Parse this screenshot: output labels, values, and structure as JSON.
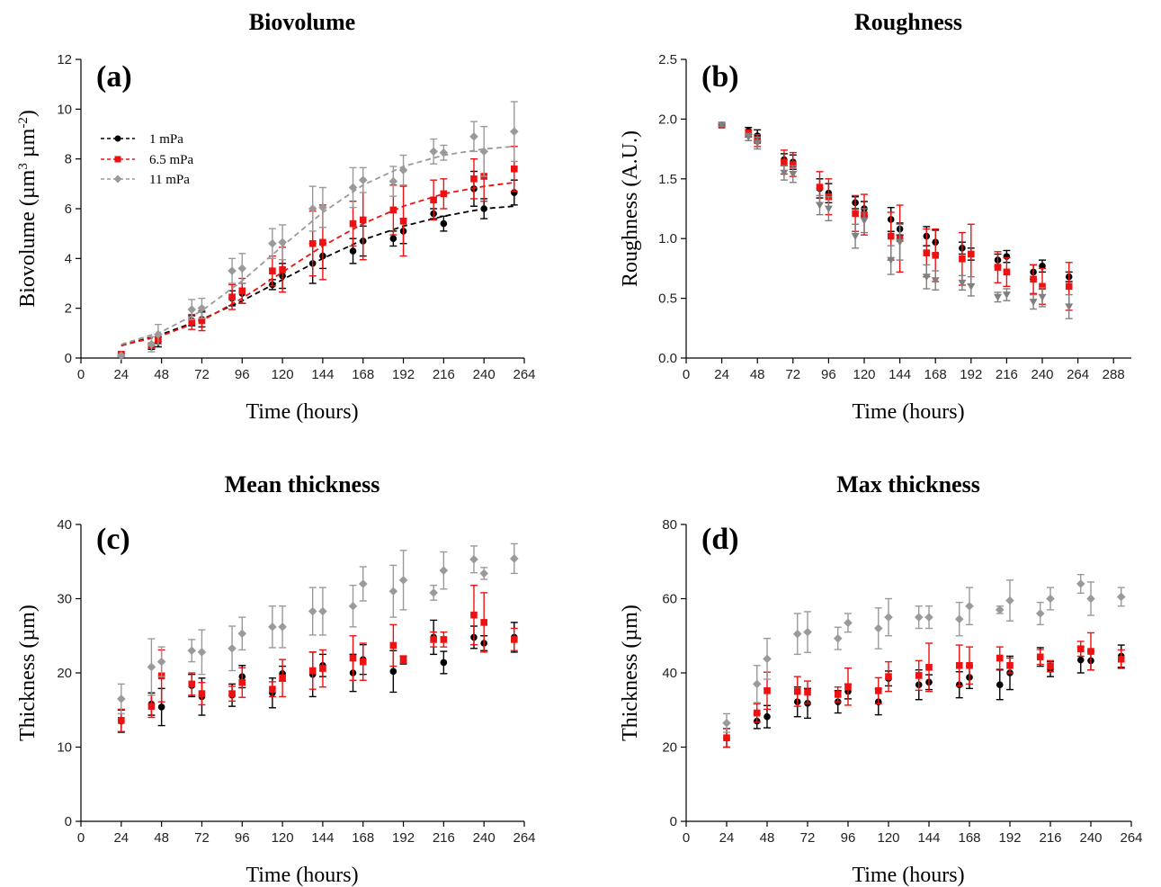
{
  "colors": {
    "s1": "#000000",
    "s2": "#ee1111",
    "s3": "#9a9a9a",
    "s3b": "#808080"
  },
  "chart_data": [
    {
      "id": "a",
      "panel_label": "(a)",
      "type": "scatter",
      "title": "Biovolume",
      "xlabel": "Time (hours)",
      "ylabel": "Biovolume (µm³ µm⁻²)",
      "ylabel_parts": {
        "main": "Biovolume (µm",
        "sup1": "3",
        "mid": " µm",
        "sup2": "-2",
        "end": ")"
      },
      "xlim": [
        0,
        264
      ],
      "ylim": [
        0,
        12
      ],
      "xticks": [
        0,
        24,
        48,
        72,
        96,
        120,
        144,
        168,
        192,
        216,
        240,
        264
      ],
      "yticks": [
        0,
        2,
        4,
        6,
        8,
        10,
        12
      ],
      "ytick_labels": [
        "0",
        "2",
        "4",
        "6",
        "8",
        "10",
        "12"
      ],
      "legend": {
        "position": "upper-left",
        "entries": [
          "1 mPa",
          "6.5 mPa",
          "11 mPa"
        ]
      },
      "series": [
        {
          "name": "1 mPa",
          "color": "#000000",
          "marker": "circle",
          "x": [
            24,
            42,
            46,
            66,
            72,
            90,
            96,
            114,
            120,
            138,
            144,
            162,
            168,
            186,
            192,
            210,
            216,
            234,
            240,
            258
          ],
          "y": [
            0.1,
            0.45,
            0.65,
            1.5,
            1.55,
            2.4,
            2.6,
            2.95,
            3.3,
            3.8,
            4.1,
            4.3,
            4.7,
            4.8,
            5.1,
            5.8,
            5.4,
            6.8,
            6.0,
            6.65
          ],
          "err": [
            0.05,
            0.1,
            0.2,
            0.2,
            0.3,
            0.3,
            0.4,
            0.2,
            0.5,
            0.8,
            0.5,
            0.5,
            0.6,
            0.3,
            0.5,
            0.2,
            0.3,
            0.7,
            0.4,
            0.5
          ],
          "fit": {
            "x": [
              24,
              48,
              72,
              96,
              120,
              144,
              168,
              192,
              216,
              240,
              258
            ],
            "y": [
              0.5,
              0.95,
              1.55,
              2.3,
              3.15,
              4.0,
              4.75,
              5.3,
              5.7,
              6.0,
              6.1
            ]
          }
        },
        {
          "name": "6.5 mPa",
          "color": "#ee1111",
          "marker": "square",
          "x": [
            24,
            42,
            46,
            66,
            72,
            90,
            96,
            114,
            120,
            138,
            144,
            162,
            168,
            186,
            192,
            210,
            216,
            234,
            240,
            258
          ],
          "y": [
            0.15,
            0.5,
            0.75,
            1.45,
            1.5,
            2.45,
            2.7,
            3.5,
            3.55,
            4.6,
            4.65,
            5.4,
            5.55,
            5.95,
            5.5,
            6.35,
            6.6,
            7.2,
            7.3,
            7.6
          ],
          "err": [
            0.05,
            0.1,
            0.2,
            0.3,
            0.4,
            0.5,
            0.5,
            0.6,
            0.9,
            1.3,
            1.5,
            0.9,
            1.6,
            1.0,
            1.4,
            0.8,
            0.6,
            0.8,
            1.0,
            0.9
          ],
          "fit": {
            "x": [
              24,
              48,
              72,
              96,
              120,
              144,
              168,
              192,
              216,
              240,
              258
            ],
            "y": [
              0.5,
              0.9,
              1.5,
              2.4,
              3.45,
              4.5,
              5.4,
              6.1,
              6.6,
              6.9,
              7.05
            ]
          }
        },
        {
          "name": "11 mPa",
          "color": "#9a9a9a",
          "marker": "diamond",
          "x": [
            24,
            42,
            46,
            66,
            72,
            90,
            96,
            114,
            120,
            138,
            144,
            162,
            168,
            186,
            192,
            210,
            216,
            234,
            240,
            258
          ],
          "y": [
            0.1,
            0.55,
            0.95,
            1.95,
            2.0,
            3.5,
            3.6,
            4.6,
            4.65,
            6.0,
            6.05,
            6.85,
            7.15,
            7.1,
            7.55,
            8.3,
            8.25,
            8.9,
            8.3,
            9.1
          ],
          "err": [
            0.05,
            0.3,
            0.4,
            0.4,
            0.4,
            0.5,
            0.6,
            0.6,
            0.7,
            0.9,
            0.8,
            0.8,
            0.5,
            0.6,
            0.6,
            0.5,
            0.3,
            0.6,
            1.0,
            1.2
          ],
          "fit": {
            "x": [
              24,
              48,
              72,
              96,
              120,
              144,
              168,
              192,
              216,
              240,
              258
            ],
            "y": [
              0.55,
              1.05,
              1.9,
              3.1,
              4.5,
              5.85,
              6.95,
              7.7,
              8.15,
              8.4,
              8.5
            ]
          }
        }
      ]
    },
    {
      "id": "b",
      "panel_label": "(b)",
      "type": "scatter",
      "title": "Roughness",
      "xlabel": "Time (hours)",
      "ylabel": "Roughness (A.U.)",
      "xlim": [
        0,
        300
      ],
      "ylim": [
        0,
        2.5
      ],
      "xticks": [
        0,
        24,
        48,
        72,
        96,
        120,
        144,
        168,
        192,
        216,
        240,
        264,
        288
      ],
      "yticks": [
        0,
        0.5,
        1,
        1.5,
        2,
        2.5
      ],
      "ytick_labels": [
        "0.0",
        "0.5",
        "1.0",
        "1.5",
        "2.0",
        "2.5"
      ],
      "series": [
        {
          "name": "1 mPa",
          "color": "#000000",
          "marker": "circle",
          "x": [
            24,
            42,
            48,
            66,
            72,
            90,
            96,
            114,
            120,
            138,
            144,
            162,
            168,
            186,
            192,
            210,
            216,
            234,
            240,
            258
          ],
          "y": [
            1.95,
            1.9,
            1.86,
            1.66,
            1.64,
            1.42,
            1.38,
            1.3,
            1.25,
            1.16,
            1.08,
            1.02,
            0.97,
            0.92,
            0.87,
            0.82,
            0.85,
            0.72,
            0.77,
            0.68
          ],
          "err": [
            0.01,
            0.03,
            0.05,
            0.05,
            0.06,
            0.08,
            0.08,
            0.05,
            0.06,
            0.1,
            0.05,
            0.08,
            0.1,
            0.05,
            0.05,
            0.05,
            0.05,
            0.06,
            0.05,
            0.04
          ]
        },
        {
          "name": "6.5 mPa",
          "color": "#ee1111",
          "marker": "square",
          "x": [
            24,
            42,
            48,
            66,
            72,
            90,
            96,
            114,
            120,
            138,
            144,
            162,
            168,
            186,
            192,
            210,
            216,
            234,
            240,
            258
          ],
          "y": [
            1.95,
            1.88,
            1.82,
            1.64,
            1.62,
            1.43,
            1.35,
            1.21,
            1.2,
            1.02,
            1.0,
            0.88,
            0.86,
            0.83,
            0.87,
            0.76,
            0.72,
            0.66,
            0.6,
            0.6
          ],
          "err": [
            0.01,
            0.03,
            0.05,
            0.1,
            0.1,
            0.13,
            0.15,
            0.15,
            0.17,
            0.2,
            0.28,
            0.2,
            0.22,
            0.22,
            0.25,
            0.13,
            0.12,
            0.12,
            0.15,
            0.2
          ]
        },
        {
          "name": "11 mPa",
          "color": "#808080",
          "marker": "triangle-down",
          "x": [
            24,
            42,
            48,
            66,
            72,
            90,
            96,
            114,
            120,
            138,
            144,
            162,
            168,
            186,
            192,
            210,
            216,
            234,
            240,
            258
          ],
          "y": [
            1.95,
            1.85,
            1.8,
            1.55,
            1.54,
            1.28,
            1.25,
            1.02,
            1.15,
            0.82,
            0.97,
            0.68,
            0.65,
            0.63,
            0.6,
            0.51,
            0.53,
            0.47,
            0.51,
            0.43
          ],
          "err": [
            0.01,
            0.03,
            0.05,
            0.06,
            0.07,
            0.08,
            0.1,
            0.1,
            0.1,
            0.12,
            0.15,
            0.1,
            0.08,
            0.06,
            0.08,
            0.04,
            0.05,
            0.06,
            0.08,
            0.1
          ]
        }
      ]
    },
    {
      "id": "c",
      "panel_label": "(c)",
      "type": "scatter",
      "title": "Mean thickness",
      "xlabel": "Time (hours)",
      "ylabel": "Thickness (µm)",
      "xlim": [
        0,
        264
      ],
      "ylim": [
        0,
        40
      ],
      "xticks": [
        0,
        24,
        48,
        72,
        96,
        120,
        144,
        168,
        192,
        216,
        240,
        264
      ],
      "yticks": [
        0,
        10,
        20,
        30,
        40
      ],
      "ytick_labels": [
        "0",
        "10",
        "20",
        "30",
        "40"
      ],
      "series": [
        {
          "name": "1 mPa",
          "color": "#000000",
          "marker": "circle",
          "x": [
            24,
            42,
            48,
            66,
            72,
            90,
            96,
            114,
            120,
            138,
            144,
            162,
            168,
            186,
            192,
            210,
            216,
            234,
            240,
            258
          ],
          "y": [
            13.5,
            15.8,
            15.4,
            18.3,
            16.8,
            17.0,
            19.5,
            17.3,
            19.9,
            19.8,
            21.0,
            20.0,
            21.8,
            20.2,
            21.7,
            24.8,
            21.4,
            24.8,
            24.0,
            24.8
          ],
          "err": [
            1.5,
            1.5,
            2.5,
            1.5,
            2.5,
            1.5,
            1.5,
            2.0,
            1.0,
            3.0,
            1.5,
            2.5,
            2.0,
            2.8,
            0.5,
            2.3,
            1.5,
            1.5,
            1.0,
            2.0
          ]
        },
        {
          "name": "6.5 mPa",
          "color": "#ee1111",
          "marker": "square",
          "x": [
            24,
            42,
            48,
            66,
            72,
            90,
            96,
            114,
            120,
            138,
            144,
            162,
            168,
            186,
            192,
            210,
            216,
            234,
            240,
            258
          ],
          "y": [
            13.6,
            15.5,
            19.6,
            18.5,
            17.2,
            17.2,
            18.7,
            17.8,
            19.3,
            20.3,
            20.6,
            22.0,
            21.5,
            23.7,
            21.8,
            24.5,
            24.5,
            27.8,
            26.8,
            24.5
          ],
          "err": [
            1.5,
            1.5,
            3.5,
            1.5,
            1.5,
            1.0,
            2.0,
            1.0,
            2.5,
            2.5,
            2.5,
            3.0,
            2.5,
            2.8,
            0.5,
            1.0,
            1.0,
            4.0,
            4.0,
            1.5
          ]
        },
        {
          "name": "11 mPa",
          "color": "#9a9a9a",
          "marker": "diamond",
          "x": [
            24,
            42,
            48,
            66,
            72,
            90,
            96,
            114,
            120,
            138,
            144,
            162,
            168,
            186,
            192,
            210,
            216,
            234,
            240,
            258
          ],
          "y": [
            16.5,
            20.8,
            21.5,
            23.0,
            22.8,
            23.3,
            25.3,
            26.2,
            26.2,
            28.3,
            28.3,
            29.0,
            32.0,
            31.0,
            32.5,
            30.8,
            33.8,
            35.3,
            33.4,
            35.4
          ],
          "err": [
            2.0,
            3.8,
            2.0,
            1.5,
            3.0,
            3.0,
            2.2,
            2.8,
            2.8,
            3.2,
            3.2,
            2.8,
            2.3,
            3.5,
            4.0,
            1.0,
            2.5,
            1.8,
            0.8,
            2.0
          ]
        }
      ]
    },
    {
      "id": "d",
      "panel_label": "(d)",
      "type": "scatter",
      "title": "Max thickness",
      "xlabel": "Time (hours)",
      "ylabel": "Thickness (µm)",
      "xlim": [
        0,
        264
      ],
      "ylim": [
        0,
        80
      ],
      "xticks": [
        0,
        24,
        48,
        72,
        96,
        120,
        144,
        168,
        192,
        216,
        240,
        264
      ],
      "yticks": [
        0,
        20,
        40,
        60,
        80
      ],
      "ytick_labels": [
        "0",
        "20",
        "40",
        "60",
        "80"
      ],
      "series": [
        {
          "name": "1 mPa",
          "color": "#000000",
          "marker": "circle",
          "x": [
            24,
            42,
            48,
            66,
            72,
            90,
            96,
            114,
            120,
            138,
            144,
            162,
            168,
            186,
            192,
            210,
            216,
            234,
            240,
            258
          ],
          "y": [
            22.5,
            27.0,
            28.2,
            32.2,
            31.8,
            32.2,
            35.0,
            32.2,
            38.5,
            36.8,
            37.5,
            36.8,
            38.8,
            36.8,
            40.0,
            44.3,
            41.0,
            43.5,
            43.3,
            44.5
          ],
          "err": [
            2.5,
            2.0,
            3.0,
            4.0,
            4.0,
            3.0,
            2.0,
            3.5,
            2.0,
            4.0,
            2.0,
            3.5,
            3.0,
            4.0,
            4.5,
            2.5,
            2.0,
            3.5,
            2.5,
            3.0
          ]
        },
        {
          "name": "6.5 mPa",
          "color": "#ee1111",
          "marker": "square",
          "x": [
            24,
            42,
            48,
            66,
            72,
            90,
            96,
            114,
            120,
            138,
            144,
            162,
            168,
            186,
            192,
            210,
            216,
            234,
            240,
            258
          ],
          "y": [
            22.5,
            29.2,
            35.2,
            35.0,
            34.8,
            34.2,
            36.3,
            35.2,
            39.0,
            39.3,
            41.5,
            42.0,
            42.0,
            44.0,
            42.0,
            44.3,
            41.8,
            46.5,
            45.8,
            43.7
          ],
          "err": [
            2.5,
            2.5,
            5.0,
            4.0,
            3.0,
            2.0,
            5.0,
            3.5,
            4.0,
            4.0,
            6.5,
            5.5,
            5.0,
            3.0,
            2.0,
            2.0,
            1.5,
            2.0,
            5.0,
            2.5
          ]
        },
        {
          "name": "11 mPa",
          "color": "#9a9a9a",
          "marker": "diamond",
          "x": [
            24,
            42,
            48,
            66,
            72,
            90,
            96,
            114,
            120,
            138,
            144,
            162,
            168,
            186,
            192,
            210,
            216,
            234,
            240,
            258
          ],
          "y": [
            26.5,
            37.0,
            43.8,
            50.5,
            51.0,
            49.3,
            53.5,
            52.0,
            55.0,
            55.0,
            55.0,
            54.5,
            58.0,
            57.0,
            59.5,
            56.0,
            60.0,
            64.0,
            60.0,
            60.5
          ],
          "err": [
            2.5,
            5.0,
            5.5,
            5.5,
            5.5,
            3.0,
            2.5,
            5.5,
            5.0,
            3.0,
            3.0,
            4.5,
            5.0,
            1.0,
            5.5,
            3.0,
            3.0,
            2.5,
            4.5,
            2.5
          ]
        }
      ]
    }
  ]
}
